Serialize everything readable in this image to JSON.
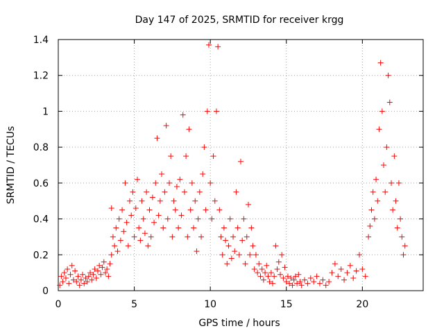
{
  "chart_data": {
    "type": "scatter",
    "title": "Day 147 of 2025, SRMTID for receiver krgg",
    "xlabel": "GPS time / hours",
    "ylabel": "SRMTID / TECUs",
    "xlim": [
      0,
      24
    ],
    "ylim": [
      0,
      1.4
    ],
    "x_ticks": [
      0,
      5,
      10,
      15,
      20
    ],
    "x_tick_labels": [
      "0",
      "5",
      "10",
      "15",
      "20"
    ],
    "y_ticks": [
      0,
      0.2,
      0.4,
      0.6,
      0.8,
      1,
      1.2,
      1.4
    ],
    "y_tick_labels": [
      "0",
      "0.2",
      "0.4",
      "0.6",
      "0.8",
      "1",
      "1.2",
      "1.4"
    ],
    "grid": true,
    "marker": "+",
    "color": "#ff0000",
    "series": [
      {
        "name": "SRMTID",
        "points": [
          [
            0.1,
            0.03
          ],
          [
            0.2,
            0.08
          ],
          [
            0.3,
            0.05
          ],
          [
            0.4,
            0.1
          ],
          [
            0.5,
            0.07
          ],
          [
            0.6,
            0.12
          ],
          [
            0.7,
            0.04
          ],
          [
            0.8,
            0.09
          ],
          [
            0.9,
            0.14
          ],
          [
            1.0,
            0.06
          ],
          [
            1.1,
            0.11
          ],
          [
            1.2,
            0.05
          ],
          [
            1.3,
            0.08
          ],
          [
            1.4,
            0.03
          ],
          [
            1.5,
            0.06
          ],
          [
            1.6,
            0.09
          ],
          [
            1.7,
            0.04
          ],
          [
            1.8,
            0.07
          ],
          [
            1.9,
            0.05
          ],
          [
            2.0,
            0.08
          ],
          [
            2.1,
            0.1
          ],
          [
            2.2,
            0.06
          ],
          [
            2.3,
            0.09
          ],
          [
            2.4,
            0.12
          ],
          [
            2.5,
            0.07
          ],
          [
            2.6,
            0.11
          ],
          [
            2.7,
            0.14
          ],
          [
            2.8,
            0.09
          ],
          [
            2.9,
            0.13
          ],
          [
            3.0,
            0.16
          ],
          [
            3.1,
            0.1
          ],
          [
            3.2,
            0.12
          ],
          [
            3.3,
            0.08
          ],
          [
            3.4,
            0.15
          ],
          [
            3.5,
            0.2
          ],
          [
            3.5,
            0.46
          ],
          [
            3.6,
            0.3
          ],
          [
            3.7,
            0.25
          ],
          [
            3.8,
            0.35
          ],
          [
            3.9,
            0.22
          ],
          [
            4.0,
            0.4
          ],
          [
            4.1,
            0.28
          ],
          [
            4.2,
            0.45
          ],
          [
            4.3,
            0.33
          ],
          [
            4.4,
            0.6
          ],
          [
            4.5,
            0.38
          ],
          [
            4.6,
            0.25
          ],
          [
            4.7,
            0.5
          ],
          [
            4.8,
            0.42
          ],
          [
            4.9,
            0.55
          ],
          [
            5.0,
            0.3
          ],
          [
            5.1,
            0.46
          ],
          [
            5.2,
            0.62
          ],
          [
            5.3,
            0.35
          ],
          [
            5.4,
            0.28
          ],
          [
            5.5,
            0.5
          ],
          [
            5.6,
            0.4
          ],
          [
            5.7,
            0.32
          ],
          [
            5.8,
            0.55
          ],
          [
            5.9,
            0.25
          ],
          [
            6.0,
            0.45
          ],
          [
            6.1,
            0.3
          ],
          [
            6.2,
            0.52
          ],
          [
            6.3,
            0.38
          ],
          [
            6.4,
            0.6
          ],
          [
            6.5,
            0.85
          ],
          [
            6.6,
            0.42
          ],
          [
            6.7,
            0.5
          ],
          [
            6.8,
            0.65
          ],
          [
            6.9,
            0.35
          ],
          [
            7.0,
            0.55
          ],
          [
            7.1,
            0.92
          ],
          [
            7.2,
            0.4
          ],
          [
            7.3,
            0.6
          ],
          [
            7.4,
            0.75
          ],
          [
            7.5,
            0.3
          ],
          [
            7.6,
            0.5
          ],
          [
            7.7,
            0.45
          ],
          [
            7.8,
            0.58
          ],
          [
            7.9,
            0.35
          ],
          [
            8.0,
            0.62
          ],
          [
            8.1,
            0.42
          ],
          [
            8.2,
            0.98
          ],
          [
            8.3,
            0.55
          ],
          [
            8.4,
            0.75
          ],
          [
            8.5,
            0.3
          ],
          [
            8.6,
            0.9
          ],
          [
            8.7,
            0.45
          ],
          [
            8.8,
            0.6
          ],
          [
            8.9,
            0.35
          ],
          [
            9.0,
            0.5
          ],
          [
            9.1,
            0.22
          ],
          [
            9.2,
            0.4
          ],
          [
            9.3,
            0.55
          ],
          [
            9.4,
            0.3
          ],
          [
            9.5,
            0.65
          ],
          [
            9.6,
            0.8
          ],
          [
            9.7,
            0.45
          ],
          [
            9.8,
            1.0
          ],
          [
            9.9,
            1.37
          ],
          [
            10.0,
            0.6
          ],
          [
            10.1,
            0.4
          ],
          [
            10.2,
            0.75
          ],
          [
            10.3,
            0.5
          ],
          [
            10.4,
            1.0
          ],
          [
            10.5,
            1.36
          ],
          [
            10.6,
            0.45
          ],
          [
            10.7,
            0.3
          ],
          [
            10.8,
            0.2
          ],
          [
            10.9,
            0.35
          ],
          [
            11.0,
            0.28
          ],
          [
            11.1,
            0.15
          ],
          [
            11.2,
            0.25
          ],
          [
            11.3,
            0.4
          ],
          [
            11.4,
            0.18
          ],
          [
            11.5,
            0.3
          ],
          [
            11.6,
            0.22
          ],
          [
            11.7,
            0.55
          ],
          [
            11.8,
            0.35
          ],
          [
            11.9,
            0.2
          ],
          [
            12.0,
            0.72
          ],
          [
            12.1,
            0.28
          ],
          [
            12.2,
            0.4
          ],
          [
            12.3,
            0.15
          ],
          [
            12.4,
            0.3
          ],
          [
            12.5,
            0.48
          ],
          [
            12.6,
            0.2
          ],
          [
            12.7,
            0.35
          ],
          [
            12.8,
            0.25
          ],
          [
            12.9,
            0.12
          ],
          [
            13.0,
            0.2
          ],
          [
            13.1,
            0.1
          ],
          [
            13.2,
            0.15
          ],
          [
            13.3,
            0.08
          ],
          [
            13.4,
            0.12
          ],
          [
            13.5,
            0.06
          ],
          [
            13.6,
            0.1
          ],
          [
            13.7,
            0.14
          ],
          [
            13.8,
            0.08
          ],
          [
            13.9,
            0.05
          ],
          [
            14.0,
            0.1
          ],
          [
            14.1,
            0.04
          ],
          [
            14.2,
            0.08
          ],
          [
            14.3,
            0.25
          ],
          [
            14.4,
            0.12
          ],
          [
            14.5,
            0.16
          ],
          [
            14.6,
            0.09
          ],
          [
            14.7,
            0.2
          ],
          [
            14.8,
            0.07
          ],
          [
            14.9,
            0.13
          ],
          [
            15.0,
            0.05
          ],
          [
            15.1,
            0.08
          ],
          [
            15.2,
            0.04
          ],
          [
            15.3,
            0.07
          ],
          [
            15.4,
            0.03
          ],
          [
            15.5,
            0.06
          ],
          [
            15.6,
            0.08
          ],
          [
            15.7,
            0.04
          ],
          [
            15.8,
            0.09
          ],
          [
            15.9,
            0.05
          ],
          [
            16.0,
            0.03
          ],
          [
            16.2,
            0.06
          ],
          [
            16.4,
            0.04
          ],
          [
            16.6,
            0.07
          ],
          [
            16.8,
            0.05
          ],
          [
            17.0,
            0.08
          ],
          [
            17.2,
            0.04
          ],
          [
            17.4,
            0.06
          ],
          [
            17.6,
            0.03
          ],
          [
            17.8,
            0.05
          ],
          [
            18.0,
            0.1
          ],
          [
            18.2,
            0.15
          ],
          [
            18.4,
            0.08
          ],
          [
            18.6,
            0.12
          ],
          [
            18.8,
            0.06
          ],
          [
            19.0,
            0.1
          ],
          [
            19.2,
            0.14
          ],
          [
            19.4,
            0.07
          ],
          [
            19.6,
            0.11
          ],
          [
            19.8,
            0.2
          ],
          [
            20.0,
            0.12
          ],
          [
            20.2,
            0.08
          ],
          [
            20.4,
            0.3
          ],
          [
            20.5,
            0.36
          ],
          [
            20.6,
            0.45
          ],
          [
            20.7,
            0.55
          ],
          [
            20.8,
            0.4
          ],
          [
            20.9,
            0.62
          ],
          [
            21.0,
            0.5
          ],
          [
            21.1,
            0.9
          ],
          [
            21.2,
            1.27
          ],
          [
            21.3,
            1.0
          ],
          [
            21.4,
            0.7
          ],
          [
            21.5,
            0.55
          ],
          [
            21.6,
            0.8
          ],
          [
            21.7,
            1.2
          ],
          [
            21.8,
            1.05
          ],
          [
            21.9,
            0.6
          ],
          [
            22.0,
            0.45
          ],
          [
            22.1,
            0.75
          ],
          [
            22.2,
            0.5
          ],
          [
            22.3,
            0.35
          ],
          [
            22.4,
            0.6
          ],
          [
            22.5,
            0.4
          ],
          [
            22.6,
            0.3
          ],
          [
            22.7,
            0.2
          ],
          [
            22.8,
            0.25
          ]
        ]
      }
    ]
  }
}
